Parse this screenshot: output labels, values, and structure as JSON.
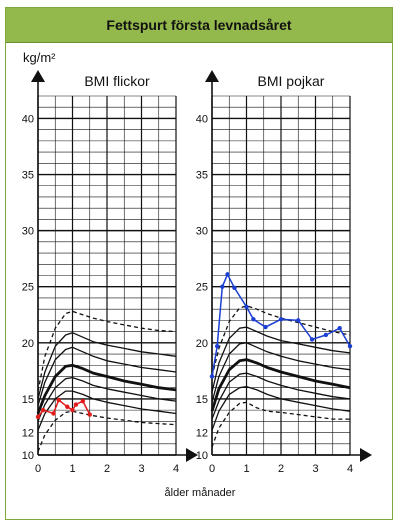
{
  "title": "Fettspurt första levnadsåret",
  "y_unit": "kg/m²",
  "x_label": "ålder månader",
  "colors": {
    "header_bg": "#93b84c",
    "frame": "#7fa83a",
    "girls_series": "#e21b1b",
    "boys_series": "#1c3fd4"
  },
  "chart_data": [
    {
      "type": "line",
      "title": "BMI flickor",
      "xlabel": "ålder månader",
      "ylabel": "kg/m²",
      "xlim": [
        0,
        4
      ],
      "ylim": [
        10,
        42
      ],
      "x_ticks": [
        0,
        1,
        2,
        3,
        4
      ],
      "y_ticks": [
        10,
        15,
        20,
        25,
        30,
        35,
        40
      ],
      "y_tick_labels": [
        "10",
        "15",
        "20",
        "25",
        "30",
        "35",
        "40"
      ],
      "y_minor_ticks": [
        12
      ],
      "y_minor_tick_labels": [
        "12"
      ],
      "grid": true,
      "reference_curves": [
        {
          "style": "dashed",
          "x": [
            0,
            0.2,
            0.5,
            0.8,
            1,
            1.3,
            1.6,
            2,
            2.5,
            3,
            3.5,
            4
          ],
          "y": [
            15.7,
            18.8,
            21.3,
            22.6,
            22.8,
            22.5,
            22.2,
            21.9,
            21.6,
            21.3,
            21.1,
            21.0
          ]
        },
        {
          "style": "solid",
          "x": [
            0,
            0.2,
            0.5,
            0.8,
            1,
            1.3,
            1.6,
            2,
            2.5,
            3,
            3.5,
            4
          ],
          "y": [
            15.0,
            17.4,
            19.7,
            20.7,
            20.9,
            20.5,
            20.1,
            19.8,
            19.5,
            19.2,
            19.0,
            18.8
          ]
        },
        {
          "style": "solid",
          "x": [
            0,
            0.2,
            0.5,
            0.8,
            1,
            1.3,
            1.6,
            2,
            2.5,
            3,
            3.5,
            4
          ],
          "y": [
            14.4,
            16.5,
            18.5,
            19.4,
            19.6,
            19.2,
            18.8,
            18.4,
            18.1,
            17.8,
            17.6,
            17.4
          ]
        },
        {
          "style": "bold",
          "x": [
            0,
            0.2,
            0.5,
            0.8,
            1,
            1.3,
            1.6,
            2,
            2.5,
            3,
            3.5,
            4
          ],
          "y": [
            13.7,
            15.3,
            17.0,
            17.9,
            18.0,
            17.7,
            17.3,
            17.0,
            16.6,
            16.3,
            16.0,
            15.8
          ]
        },
        {
          "style": "solid",
          "x": [
            0,
            0.2,
            0.5,
            0.8,
            1,
            1.3,
            1.6,
            2,
            2.5,
            3,
            3.5,
            4
          ],
          "y": [
            13.0,
            14.5,
            16.0,
            16.8,
            16.9,
            16.6,
            16.2,
            15.9,
            15.6,
            15.3,
            15.0,
            14.8
          ]
        },
        {
          "style": "solid",
          "x": [
            0,
            0.2,
            0.5,
            0.8,
            1,
            1.3,
            1.6,
            2,
            2.5,
            3,
            3.5,
            4
          ],
          "y": [
            12.2,
            13.7,
            15.0,
            15.7,
            15.7,
            15.4,
            15.0,
            14.7,
            14.4,
            14.1,
            13.9,
            13.7
          ]
        },
        {
          "style": "dashed",
          "x": [
            0,
            0.2,
            0.5,
            0.8,
            1,
            1.3,
            1.6,
            2,
            2.5,
            3,
            3.5,
            4
          ],
          "y": [
            10.3,
            11.8,
            13.1,
            13.8,
            13.9,
            13.7,
            13.5,
            13.3,
            13.1,
            12.9,
            12.8,
            12.7
          ]
        }
      ],
      "series": [
        {
          "x": [
            0,
            0.15,
            0.45,
            0.6,
            0.85,
            1.0,
            1.1,
            1.3,
            1.5
          ],
          "y": [
            13.4,
            14.0,
            13.7,
            14.9,
            14.3,
            14.0,
            14.5,
            14.8,
            13.6
          ]
        }
      ]
    },
    {
      "type": "line",
      "title": "BMI pojkar",
      "xlabel": "ålder månader",
      "ylabel": "kg/m²",
      "xlim": [
        0,
        4
      ],
      "ylim": [
        10,
        42
      ],
      "x_ticks": [
        0,
        1,
        2,
        3,
        4
      ],
      "y_ticks": [
        10,
        15,
        20,
        25,
        30,
        35,
        40
      ],
      "y_tick_labels": [
        "10",
        "15",
        "20",
        "25",
        "30",
        "35",
        "40"
      ],
      "y_minor_ticks": [
        12
      ],
      "y_minor_tick_labels": [
        "12"
      ],
      "grid": true,
      "reference_curves": [
        {
          "style": "dashed",
          "x": [
            0,
            0.2,
            0.5,
            0.8,
            1,
            1.3,
            1.6,
            2,
            2.5,
            3,
            3.5,
            4
          ],
          "y": [
            17.0,
            19.5,
            21.9,
            23.1,
            23.3,
            23.0,
            22.6,
            22.2,
            21.8,
            21.4,
            21.0,
            20.7
          ]
        },
        {
          "style": "solid",
          "x": [
            0,
            0.2,
            0.5,
            0.8,
            1,
            1.3,
            1.6,
            2,
            2.5,
            3,
            3.5,
            4
          ],
          "y": [
            15.6,
            18.2,
            20.4,
            21.3,
            21.4,
            21.0,
            20.6,
            20.2,
            19.9,
            19.6,
            19.3,
            19.1
          ]
        },
        {
          "style": "solid",
          "x": [
            0,
            0.2,
            0.5,
            0.8,
            1,
            1.3,
            1.6,
            2,
            2.5,
            3,
            3.5,
            4
          ],
          "y": [
            14.7,
            17.0,
            19.0,
            19.9,
            20.0,
            19.6,
            19.2,
            18.8,
            18.4,
            18.1,
            17.8,
            17.6
          ]
        },
        {
          "style": "bold",
          "x": [
            0,
            0.2,
            0.5,
            0.8,
            1,
            1.3,
            1.6,
            2,
            2.5,
            3,
            3.5,
            4
          ],
          "y": [
            13.9,
            15.9,
            17.6,
            18.4,
            18.5,
            18.2,
            17.8,
            17.4,
            17.0,
            16.6,
            16.3,
            16.0
          ]
        },
        {
          "style": "solid",
          "x": [
            0,
            0.2,
            0.5,
            0.8,
            1,
            1.3,
            1.6,
            2,
            2.5,
            3,
            3.5,
            4
          ],
          "y": [
            13.2,
            14.8,
            16.5,
            17.2,
            17.3,
            17.0,
            16.6,
            16.2,
            15.8,
            15.5,
            15.2,
            15.0
          ]
        },
        {
          "style": "solid",
          "x": [
            0,
            0.2,
            0.5,
            0.8,
            1,
            1.3,
            1.6,
            2,
            2.5,
            3,
            3.5,
            4
          ],
          "y": [
            12.2,
            13.9,
            15.4,
            16.0,
            16.1,
            15.8,
            15.4,
            15.0,
            14.7,
            14.4,
            14.1,
            13.9
          ]
        },
        {
          "style": "dashed",
          "x": [
            0,
            0.2,
            0.5,
            0.8,
            1,
            1.3,
            1.6,
            2,
            2.5,
            3,
            3.5,
            4
          ],
          "y": [
            10.7,
            12.4,
            13.8,
            14.6,
            14.7,
            14.2,
            13.9,
            13.8,
            13.6,
            13.4,
            13.2,
            13.2
          ]
        }
      ],
      "series": [
        {
          "x": [
            0,
            0.15,
            0.3,
            0.45,
            0.65,
            1.0,
            1.2,
            1.55,
            2.0,
            2.5,
            2.9,
            3.3,
            3.7,
            4.0
          ],
          "y": [
            17.0,
            19.7,
            25.0,
            26.1,
            24.9,
            23.2,
            22.1,
            21.4,
            22.1,
            22.0,
            20.3,
            20.7,
            21.3,
            19.7
          ]
        }
      ]
    }
  ]
}
